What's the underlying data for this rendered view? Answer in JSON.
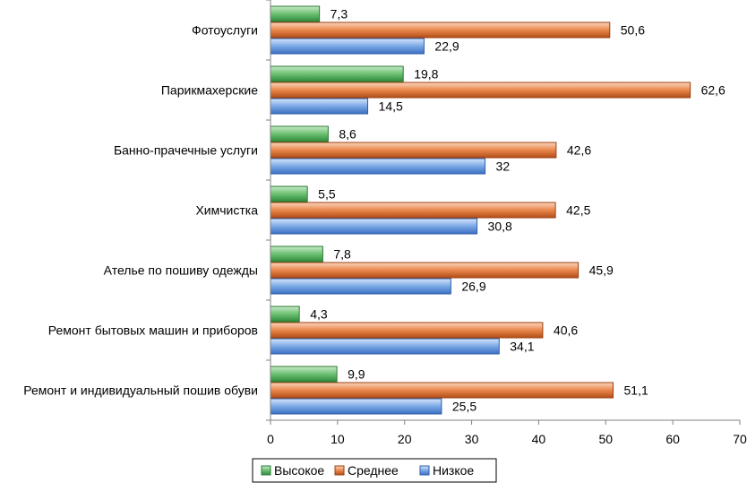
{
  "chart_data": {
    "type": "bar",
    "orientation": "horizontal",
    "title": "",
    "xlabel": "",
    "ylabel": "",
    "xlim": [
      0,
      70
    ],
    "x_ticks": [
      0,
      10,
      20,
      30,
      40,
      50,
      60,
      70
    ],
    "grid": false,
    "legend_position": "bottom",
    "categories": [
      "Фотоуслуги",
      "Парикмахерские",
      "Банно-прачечные услуги",
      "Химчистка",
      "Ателье по пошиву одежды",
      "Ремонт бытовых машин и приборов",
      "Ремонт и индивидуальный пошив обуви"
    ],
    "series": [
      {
        "name": "Высокое",
        "color": "#4daa5a",
        "values": [
          7.3,
          19.8,
          8.6,
          5.5,
          7.8,
          4.3,
          9.9
        ],
        "labels": [
          "7,3",
          "19,8",
          "8,6",
          "5,5",
          "7,8",
          "4,3",
          "9,9"
        ]
      },
      {
        "name": "Среднее",
        "color": "#e07b3f",
        "values": [
          50.6,
          62.6,
          42.6,
          42.5,
          45.9,
          40.6,
          51.1
        ],
        "labels": [
          "50,6",
          "62,6",
          "42,6",
          "42,5",
          "45,9",
          "40,6",
          "51,1"
        ]
      },
      {
        "name": "Низкое",
        "color": "#5b8fd6",
        "values": [
          22.9,
          14.5,
          32,
          30.8,
          26.9,
          34.1,
          25.5
        ],
        "labels": [
          "22,9",
          "14,5",
          "32",
          "30,8",
          "26,9",
          "34,1",
          "25,5"
        ]
      }
    ]
  }
}
